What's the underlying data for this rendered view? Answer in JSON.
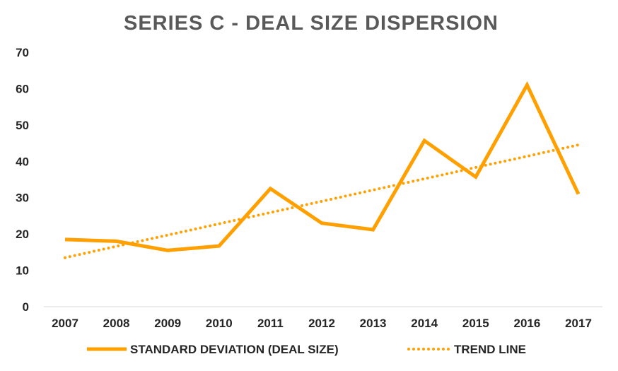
{
  "chart_data": {
    "type": "line",
    "title": "SERIES C - DEAL SIZE DISPERSION",
    "xlabel": "",
    "ylabel": "",
    "categories": [
      "2007",
      "2008",
      "2009",
      "2010",
      "2011",
      "2012",
      "2013",
      "2014",
      "2015",
      "2016",
      "2017"
    ],
    "series": [
      {
        "name": "STANDARD DEVIATION (DEAL SIZE)",
        "style": "solid",
        "color": "#FFA000",
        "values": [
          18.5,
          18,
          15.5,
          16.7,
          32.5,
          23,
          21.2,
          45.7,
          35.7,
          61,
          31
        ]
      },
      {
        "name": "TREND LINE",
        "style": "dotted",
        "color": "#FFA000",
        "values": [
          13.5,
          16.6,
          19.7,
          22.8,
          25.9,
          29.0,
          32.1,
          35.2,
          38.3,
          41.4,
          44.5
        ]
      }
    ],
    "yticks": [
      "0",
      "10",
      "20",
      "30",
      "40",
      "50",
      "60",
      "70"
    ],
    "ylim": [
      0,
      70
    ],
    "grid": false,
    "legend_position": "bottom"
  }
}
